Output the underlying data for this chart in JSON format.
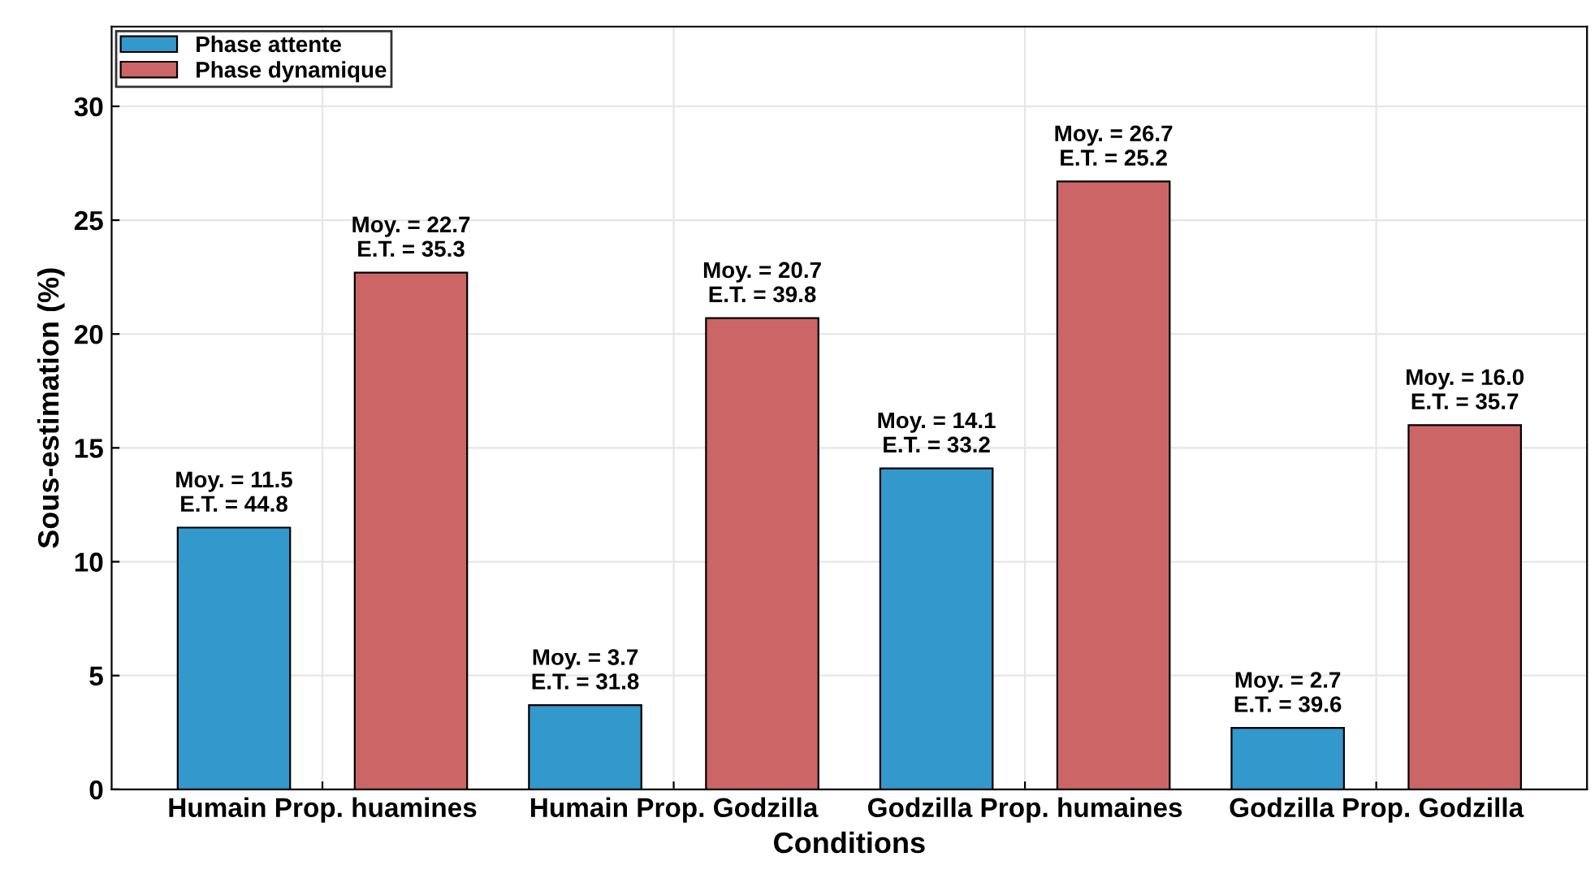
{
  "chart_data": {
    "type": "bar",
    "xlabel": "Conditions",
    "ylabel": "Sous-estimation (%)",
    "categories": [
      "Humain Prop. huamines",
      "Humain Prop. Godzilla",
      "Godzilla Prop. humaines",
      "Godzilla Prop. Godzilla"
    ],
    "series": [
      {
        "name": "Phase attente",
        "color": "#3399cc",
        "values": [
          11.5,
          3.7,
          14.1,
          2.7
        ],
        "value_labels": [
          "Moy. = 11.5\nE.T. = 44.8",
          "Moy. = 3.7\nE.T. = 31.8",
          "Moy. = 14.1\nE.T. = 33.2",
          "Moy. = 2.7\nE.T. = 39.6"
        ]
      },
      {
        "name": "Phase dynamique",
        "color": "#cc6666",
        "values": [
          22.7,
          20.7,
          26.7,
          16.0
        ],
        "value_labels": [
          "Moy. = 22.7\nE.T. = 35.3",
          "Moy. = 20.7\nE.T. = 39.8",
          "Moy. = 26.7\nE.T. = 25.2",
          "Moy. = 16.0\nE.T. = 35.7"
        ]
      }
    ],
    "ylim": [
      0,
      33.5
    ],
    "yticks": [
      0,
      5,
      10,
      15,
      20,
      25,
      30
    ],
    "grid": true,
    "legend": "top left"
  }
}
